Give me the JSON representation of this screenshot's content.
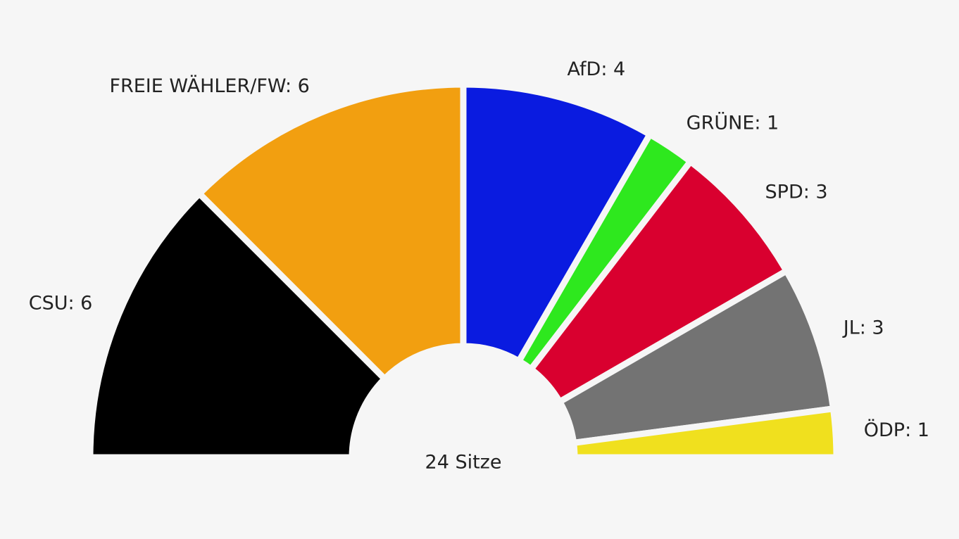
{
  "chart_data": {
    "type": "parliament",
    "value_labels": [
      "CSU: 6",
      "FREIE WÄHLER/FW: 6",
      "AfD: 4",
      "GRÜNE: 1",
      "SPD: 3",
      "JL: 3",
      "ÖDP: 1"
    ],
    "values": [
      6,
      6,
      4,
      1,
      3,
      3,
      1
    ],
    "colors": [
      "#000000",
      "#f29f10",
      "#0a1be0",
      "#2ee81e",
      "#d9002f",
      "#737373",
      "#f0e01e"
    ],
    "center_label": "24 Sitze"
  }
}
